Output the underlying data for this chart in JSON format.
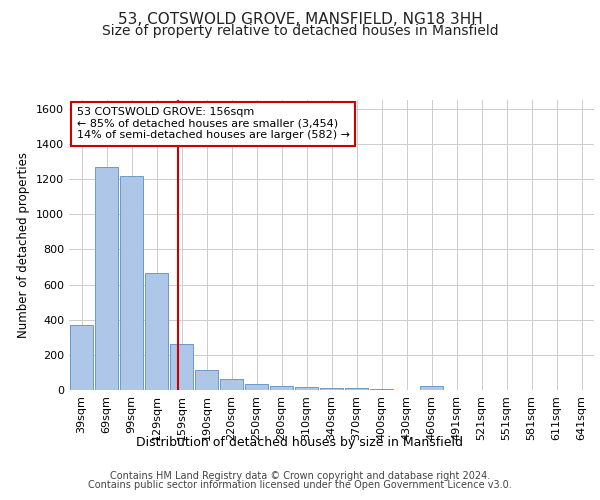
{
  "title": "53, COTSWOLD GROVE, MANSFIELD, NG18 3HH",
  "subtitle": "Size of property relative to detached houses in Mansfield",
  "xlabel": "Distribution of detached houses by size in Mansfield",
  "ylabel": "Number of detached properties",
  "footer_line1": "Contains HM Land Registry data © Crown copyright and database right 2024.",
  "footer_line2": "Contains public sector information licensed under the Open Government Licence v3.0.",
  "bar_labels": [
    "39sqm",
    "69sqm",
    "99sqm",
    "129sqm",
    "159sqm",
    "190sqm",
    "220sqm",
    "250sqm",
    "280sqm",
    "310sqm",
    "340sqm",
    "370sqm",
    "400sqm",
    "430sqm",
    "460sqm",
    "491sqm",
    "521sqm",
    "551sqm",
    "581sqm",
    "611sqm",
    "641sqm"
  ],
  "bar_values": [
    370,
    1270,
    1220,
    665,
    260,
    115,
    65,
    35,
    25,
    15,
    12,
    10,
    8,
    0,
    20,
    0,
    0,
    0,
    0,
    0,
    0
  ],
  "bar_color": "#aec6e8",
  "bar_edgecolor": "#5a8fc2",
  "annotation_line1": "53 COTSWOLD GROVE: 156sqm",
  "annotation_line2": "← 85% of detached houses are smaller (3,454)",
  "annotation_line3": "14% of semi-detached houses are larger (582) →",
  "vline_color": "#cc0000",
  "vline_x": 3.87,
  "ylim": [
    0,
    1650
  ],
  "yticks": [
    0,
    200,
    400,
    600,
    800,
    1000,
    1200,
    1400,
    1600
  ],
  "grid_color": "#cccccc",
  "background_color": "#ffffff",
  "annotation_box_edgecolor": "#cc0000",
  "title_fontsize": 11,
  "subtitle_fontsize": 10,
  "ylabel_fontsize": 8.5,
  "xlabel_fontsize": 9,
  "tick_fontsize": 8,
  "footer_fontsize": 7,
  "annotation_fontsize": 8
}
